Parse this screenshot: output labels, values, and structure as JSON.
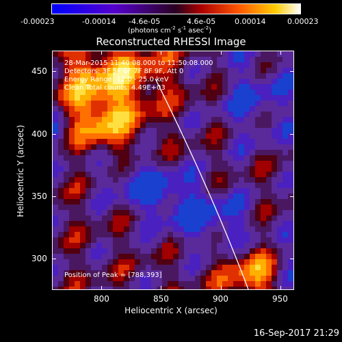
{
  "colorbar": {
    "ticks": [
      "-0.00023",
      "-0.00014",
      "-4.6e-05",
      "4.6e-05",
      "0.00014",
      "0.00023"
    ],
    "unit_prefix": "(photons cm",
    "unit_exp1": "-2",
    "unit_mid": " s",
    "unit_exp2": "-1",
    "unit_end": " asec",
    "unit_exp3": "-2",
    "unit_close": ")"
  },
  "title": "Reconstructed RHESSI Image",
  "annotations": {
    "time": "28-Mar-2015 11:40:08.000 to 11:50:08.000",
    "detectors": "Detectors: 3F 5F 6F 7F 8F 9F, Att 0",
    "energy": "Energy Range: 12.0 - 25.0 keV",
    "clean": "Clean     Total counts: 4.49E+03",
    "peak": "Position of Peak = [788,393]"
  },
  "axes": {
    "xlabel": "Heliocentric X (arcsec)",
    "ylabel": "Heliocentric Y (arcsec)",
    "xticks": [
      "800",
      "850",
      "900",
      "950"
    ],
    "yticks": [
      "300",
      "350",
      "400",
      "450"
    ]
  },
  "timestamp": "16-Sep-2017 21:29",
  "colors": {
    "limb": "#ffffff",
    "background": "#000000"
  }
}
